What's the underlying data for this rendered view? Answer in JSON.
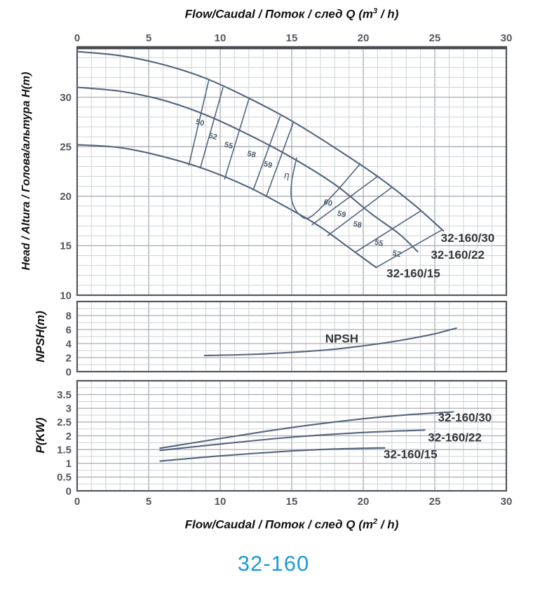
{
  "page_title": "32-160",
  "colors": {
    "accent": "#1b9cd8",
    "curve": "#54647d"
  },
  "axis_top_title": {
    "pre": "Flow/Caudal / Поток / след  Q (m",
    "sup": "3",
    "post": " / h)"
  },
  "axis_bottom_title": {
    "pre": "Flow/Caudal / Поток / след  Q (m",
    "sup": "2",
    "post": " / h)"
  },
  "axes": {
    "head_label": "Head / Altura / Голова/альтура H(m)",
    "npsh_label": "NPSH(m)",
    "power_label": "P(KW)"
  },
  "chart_data": [
    {
      "id": "head",
      "type": "line",
      "xlabel": "Flow/Caudal / Поток / след Q (m3/h)",
      "ylabel": "Head / Altura / Голова/альтура H(m)",
      "xlim": [
        0,
        30
      ],
      "ylim": [
        10,
        35
      ],
      "x_minor": 1,
      "x_major": 5,
      "y_minor": 1,
      "y_major": 5,
      "grid": true,
      "x_ticks": [
        0,
        5,
        10,
        15,
        20,
        25,
        30
      ],
      "y_ticks": [
        30,
        25,
        20,
        15,
        10
      ],
      "series": [
        {
          "name": "32-160/30",
          "points": [
            [
              0,
              34.6
            ],
            [
              3,
              34.2
            ],
            [
              6,
              33.3
            ],
            [
              9,
              31.9
            ],
            [
              12,
              29.9
            ],
            [
              15,
              27.6
            ],
            [
              18,
              24.9
            ],
            [
              21,
              22.0
            ],
            [
              23.5,
              19.2
            ],
            [
              25.6,
              16.5
            ]
          ]
        },
        {
          "name": "32-160/22",
          "points": [
            [
              0,
              31.0
            ],
            [
              3,
              30.6
            ],
            [
              6,
              29.7
            ],
            [
              9,
              28.2
            ],
            [
              12,
              26.2
            ],
            [
              15,
              23.9
            ],
            [
              18,
              21.2
            ],
            [
              20.5,
              18.3
            ],
            [
              22.5,
              16.2
            ],
            [
              23.8,
              14.4
            ]
          ]
        },
        {
          "name": "32-160/15",
          "points": [
            [
              0,
              25.2
            ],
            [
              3,
              24.9
            ],
            [
              6,
              24.0
            ],
            [
              9,
              22.7
            ],
            [
              12,
              20.9
            ],
            [
              15,
              18.6
            ],
            [
              17,
              16.9
            ],
            [
              19,
              14.8
            ],
            [
              20.9,
              12.8
            ]
          ]
        }
      ],
      "series_labels": [
        {
          "text": "32-160/30",
          "x": 27.3,
          "y": 15.4
        },
        {
          "text": "32-160/22",
          "x": 26.6,
          "y": 13.7
        },
        {
          "text": "32-160/15",
          "x": 23.5,
          "y": 11.8
        }
      ],
      "efficiency_lines": [
        {
          "label": "50",
          "points": [
            [
              7.8,
              23.1
            ],
            [
              9.2,
              31.7
            ]
          ],
          "label_pos": [
            8.55,
            27.2
          ]
        },
        {
          "label": "52",
          "points": [
            [
              8.6,
              22.8
            ],
            [
              10.2,
              31.0
            ]
          ],
          "label_pos": [
            9.45,
            25.8
          ]
        },
        {
          "label": "55",
          "points": [
            [
              10.3,
              21.7
            ],
            [
              12.0,
              29.8
            ]
          ],
          "label_pos": [
            10.55,
            24.9
          ]
        },
        {
          "label": "58",
          "points": [
            [
              12.3,
              20.6
            ],
            [
              14.2,
              28.1
            ]
          ],
          "label_pos": [
            12.15,
            24.0
          ]
        },
        {
          "label": "59",
          "points": [
            [
              13.2,
              19.9
            ],
            [
              15.1,
              27.4
            ]
          ],
          "label_pos": [
            13.3,
            22.95
          ]
        },
        {
          "label": "60",
          "points": [
            [
              15.35,
              23.9
            ],
            [
              15.0,
              21.5
            ],
            [
              15.0,
              19.6
            ],
            [
              15.5,
              18.2
            ],
            [
              16.3,
              17.9
            ],
            [
              18.0,
              20.3
            ],
            [
              19.8,
              23.3
            ]
          ],
          "label_pos": [
            17.5,
            19.1
          ]
        },
        {
          "label": "59",
          "points": [
            [
              16.4,
              17.1
            ],
            [
              21.0,
              22.0
            ]
          ],
          "label_pos": [
            18.45,
            17.95
          ]
        },
        {
          "label": "58",
          "points": [
            [
              17.5,
              16.0
            ],
            [
              22.0,
              20.9
            ]
          ],
          "label_pos": [
            19.55,
            16.9
          ]
        },
        {
          "label": "55",
          "points": [
            [
              19.4,
              14.3
            ],
            [
              24.0,
              18.5
            ]
          ],
          "label_pos": [
            21.05,
            15.05
          ]
        },
        {
          "label": "52",
          "points": [
            [
              20.9,
              12.8
            ],
            [
              25.5,
              16.6
            ]
          ],
          "label_pos": [
            22.3,
            13.95
          ]
        }
      ],
      "eta_label": {
        "text": "η",
        "x": 14.65,
        "y": 21.8
      }
    },
    {
      "id": "npsh",
      "type": "line",
      "ylabel": "NPSH(m)",
      "xlim": [
        0,
        30
      ],
      "ylim": [
        0,
        10
      ],
      "x_minor": 1,
      "x_major": 5,
      "y_minor": 1,
      "y_major": 2,
      "grid": true,
      "y_ticks": [
        8,
        6,
        4,
        2,
        0
      ],
      "series": [
        {
          "name": "NPSH",
          "points": [
            [
              8.9,
              2.3
            ],
            [
              12,
              2.45
            ],
            [
              15,
              2.75
            ],
            [
              18,
              3.2
            ],
            [
              21,
              3.95
            ],
            [
              23,
              4.6
            ],
            [
              25,
              5.4
            ],
            [
              26.5,
              6.2
            ]
          ]
        }
      ],
      "series_labels": [
        {
          "text": "NPSH",
          "x": 18.5,
          "y": 4.15
        }
      ]
    },
    {
      "id": "power",
      "type": "line",
      "xlabel": "Flow/Caudal / Поток / след Q (m2/h)",
      "ylabel": "P(KW)",
      "xlim": [
        0,
        30
      ],
      "ylim": [
        0,
        4
      ],
      "x_minor": 1,
      "x_major": 5,
      "y_minor": 0.25,
      "y_major": 0.5,
      "grid": true,
      "x_ticks": [
        0,
        5,
        10,
        15,
        20,
        25,
        30
      ],
      "y_ticks": [
        3.5,
        3,
        2.5,
        2,
        1.5,
        1,
        0.5,
        0
      ],
      "series": [
        {
          "name": "32-160/30",
          "points": [
            [
              5.8,
              1.55
            ],
            [
              10,
              1.9
            ],
            [
              15,
              2.3
            ],
            [
              20,
              2.62
            ],
            [
              23,
              2.76
            ],
            [
              26.3,
              2.87
            ]
          ]
        },
        {
          "name": "32-160/22",
          "points": [
            [
              5.8,
              1.47
            ],
            [
              10,
              1.7
            ],
            [
              15,
              1.95
            ],
            [
              20,
              2.12
            ],
            [
              24.3,
              2.21
            ]
          ]
        },
        {
          "name": "32-160/15",
          "points": [
            [
              5.8,
              1.08
            ],
            [
              10,
              1.27
            ],
            [
              15,
              1.45
            ],
            [
              18,
              1.52
            ],
            [
              21.5,
              1.56
            ]
          ]
        }
      ],
      "series_labels": [
        {
          "text": "32-160/30",
          "x": 27.1,
          "y": 2.52
        },
        {
          "text": "32-160/22",
          "x": 26.4,
          "y": 1.8
        },
        {
          "text": "32-160/15",
          "x": 23.3,
          "y": 1.18
        }
      ]
    }
  ]
}
